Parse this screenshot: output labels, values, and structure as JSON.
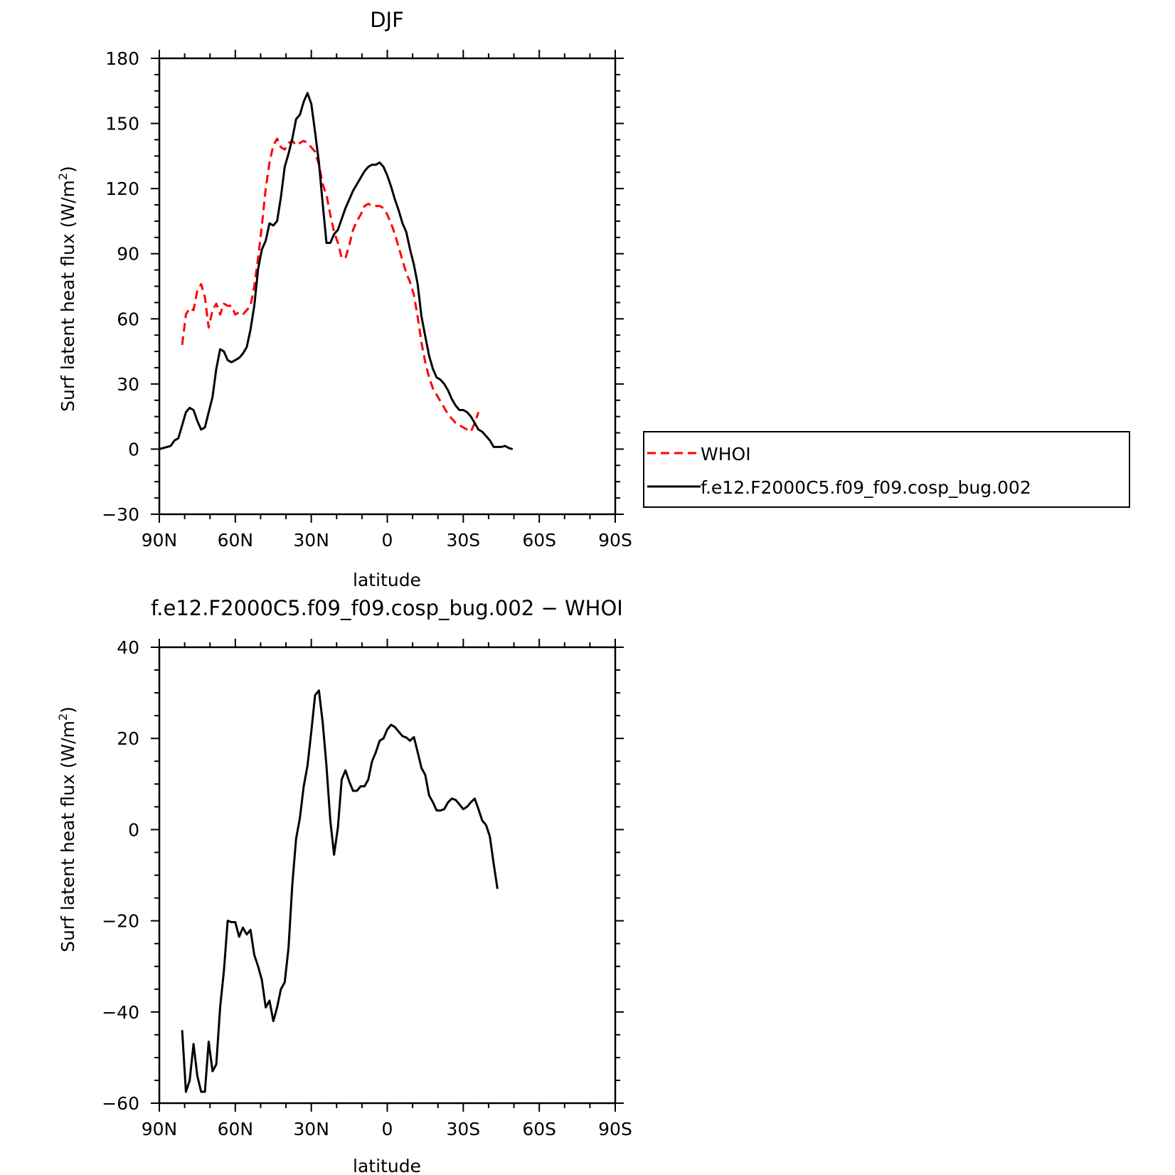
{
  "chart_data": [
    {
      "type": "line",
      "title": "DJF",
      "xlabel": "latitude",
      "ylabel": "Surf latent heat flux (W/m",
      "ylabel_sup": "2",
      "ylabel_tail": ")",
      "xlim": [
        90,
        -90
      ],
      "ylim": [
        -30,
        180
      ],
      "x_ticks": [
        90,
        60,
        30,
        0,
        -30,
        -60,
        -90
      ],
      "x_tick_labels": [
        "90N",
        "60N",
        "30N",
        "0",
        "30S",
        "60S",
        "90S"
      ],
      "y_ticks": [
        -30,
        0,
        30,
        60,
        90,
        120,
        150,
        180
      ],
      "y_tick_labels": [
        "−30",
        "0",
        "30",
        "60",
        "90",
        "120",
        "150",
        "180"
      ],
      "legend": {
        "placement": "right",
        "entries": [
          "WHOI",
          "f.e12.F2000C5.f09_f09.cosp_bug.002"
        ]
      },
      "series": [
        {
          "name": "WHOI",
          "color": "#ff0000",
          "dash": "dashed",
          "points": [
            [
              81,
              48
            ],
            [
              79.5,
              62
            ],
            [
              78,
              65
            ],
            [
              76.5,
              64
            ],
            [
              75,
              73
            ],
            [
              73.5,
              76
            ],
            [
              72,
              70
            ],
            [
              70.5,
              56
            ],
            [
              69,
              64
            ],
            [
              67.5,
              67
            ],
            [
              66,
              62
            ],
            [
              64.5,
              67
            ],
            [
              63,
              66
            ],
            [
              61.5,
              66
            ],
            [
              60,
              62
            ],
            [
              58.5,
              63
            ],
            [
              57,
              62
            ],
            [
              55.5,
              64
            ],
            [
              54,
              66
            ],
            [
              52.5,
              75
            ],
            [
              51,
              88
            ],
            [
              49.5,
              103
            ],
            [
              48,
              120
            ],
            [
              46.5,
              132
            ],
            [
              45,
              140
            ],
            [
              43.5,
              143
            ],
            [
              42,
              139
            ],
            [
              40.5,
              138
            ],
            [
              39,
              141
            ],
            [
              37.5,
              142
            ],
            [
              36,
              140
            ],
            [
              34.5,
              141
            ],
            [
              33,
              142
            ],
            [
              31.5,
              141
            ],
            [
              30,
              139
            ],
            [
              28.5,
              137
            ],
            [
              27,
              131
            ],
            [
              25.5,
              122
            ],
            [
              24,
              117
            ],
            [
              22.5,
              108
            ],
            [
              21,
              100
            ],
            [
              19.5,
              95
            ],
            [
              18,
              88
            ],
            [
              16.5,
              88
            ],
            [
              15,
              94
            ],
            [
              13.5,
              101
            ],
            [
              12,
              105
            ],
            [
              10.5,
              108
            ],
            [
              9,
              112
            ],
            [
              7.5,
              113
            ],
            [
              6,
              112
            ],
            [
              4.5,
              112
            ],
            [
              3,
              112
            ],
            [
              1.5,
              111
            ],
            [
              0,
              108
            ],
            [
              -1.5,
              104
            ],
            [
              -3,
              99
            ],
            [
              -4.5,
              93
            ],
            [
              -6,
              87
            ],
            [
              -7.5,
              81
            ],
            [
              -9,
              77
            ],
            [
              -10.5,
              71
            ],
            [
              -12,
              61
            ],
            [
              -13.5,
              49
            ],
            [
              -15,
              40
            ],
            [
              -16.5,
              33
            ],
            [
              -18,
              28
            ],
            [
              -19.5,
              25
            ],
            [
              -21,
              22
            ],
            [
              -22.5,
              19
            ],
            [
              -24,
              16
            ],
            [
              -25.5,
              14
            ],
            [
              -27,
              12
            ],
            [
              -28.5,
              11
            ],
            [
              -30,
              10
            ],
            [
              -31.5,
              9
            ],
            [
              -33,
              8
            ],
            [
              -34.5,
              12
            ],
            [
              -36,
              17
            ]
          ]
        },
        {
          "name": "f.e12.F2000C5.f09_f09.cosp_bug.002",
          "color": "#000000",
          "dash": "solid",
          "points": [
            [
              90,
              0
            ],
            [
              88.5,
              0.5
            ],
            [
              87,
              1
            ],
            [
              85.5,
              1.5
            ],
            [
              84,
              4
            ],
            [
              82.5,
              5
            ],
            [
              81,
              11
            ],
            [
              79.5,
              17
            ],
            [
              78,
              19
            ],
            [
              76.5,
              18
            ],
            [
              75,
              13
            ],
            [
              73.5,
              9
            ],
            [
              72,
              10
            ],
            [
              70.5,
              17
            ],
            [
              69,
              24
            ],
            [
              67.5,
              37
            ],
            [
              66,
              46
            ],
            [
              64.5,
              45
            ],
            [
              63,
              41
            ],
            [
              61.5,
              40
            ],
            [
              60,
              41
            ],
            [
              58.5,
              42
            ],
            [
              57,
              44
            ],
            [
              55.5,
              47
            ],
            [
              54,
              55
            ],
            [
              52.5,
              66
            ],
            [
              51,
              83
            ],
            [
              49.5,
              92
            ],
            [
              48,
              96
            ],
            [
              46.5,
              104
            ],
            [
              45,
              103
            ],
            [
              43.5,
              105
            ],
            [
              42,
              116
            ],
            [
              40.5,
              130
            ],
            [
              39,
              136
            ],
            [
              37.5,
              143
            ],
            [
              36,
              152
            ],
            [
              34.5,
              154
            ],
            [
              33,
              160
            ],
            [
              31.5,
              164
            ],
            [
              30,
              159
            ],
            [
              28.5,
              146
            ],
            [
              27,
              132
            ],
            [
              25.5,
              113
            ],
            [
              24,
              95
            ],
            [
              22.5,
              95
            ],
            [
              21,
              99
            ],
            [
              19.5,
              101
            ],
            [
              18,
              106
            ],
            [
              16.5,
              111
            ],
            [
              15,
              115
            ],
            [
              13.5,
              119
            ],
            [
              12,
              122
            ],
            [
              10.5,
              125
            ],
            [
              9,
              128
            ],
            [
              7.5,
              130
            ],
            [
              6,
              131
            ],
            [
              4.5,
              131
            ],
            [
              3,
              132
            ],
            [
              1.5,
              130
            ],
            [
              0,
              126
            ],
            [
              -1.5,
              121
            ],
            [
              -3,
              115
            ],
            [
              -4.5,
              110
            ],
            [
              -6,
              104
            ],
            [
              -7.5,
              100
            ],
            [
              -9,
              92
            ],
            [
              -10.5,
              85
            ],
            [
              -12,
              76
            ],
            [
              -13.5,
              61
            ],
            [
              -15,
              52
            ],
            [
              -16.5,
              43
            ],
            [
              -18,
              37
            ],
            [
              -19.5,
              33
            ],
            [
              -21,
              32
            ],
            [
              -22.5,
              30
            ],
            [
              -24,
              27
            ],
            [
              -25.5,
              23
            ],
            [
              -27,
              20
            ],
            [
              -28.5,
              18
            ],
            [
              -30,
              18
            ],
            [
              -31.5,
              17
            ],
            [
              -33,
              15
            ],
            [
              -34.5,
              12
            ],
            [
              -36,
              9
            ],
            [
              -37.5,
              8
            ],
            [
              -39,
              6
            ],
            [
              -40.5,
              4
            ],
            [
              -42,
              1
            ],
            [
              -43.5,
              1
            ],
            [
              -45,
              1
            ],
            [
              -46.5,
              1.5
            ],
            [
              -48,
              0.5
            ],
            [
              -49.5,
              0
            ]
          ]
        }
      ]
    },
    {
      "type": "line",
      "title": "f.e12.F2000C5.f09_f09.cosp_bug.002 − WHOI",
      "xlabel": "latitude",
      "ylabel": "Surf latent heat flux (W/m",
      "ylabel_sup": "2",
      "ylabel_tail": ")",
      "xlim": [
        90,
        -90
      ],
      "ylim": [
        -60,
        40
      ],
      "x_ticks": [
        90,
        60,
        30,
        0,
        -30,
        -60,
        -90
      ],
      "x_tick_labels": [
        "90N",
        "60N",
        "30N",
        "0",
        "30S",
        "60S",
        "90S"
      ],
      "y_ticks": [
        -60,
        -40,
        -20,
        0,
        20,
        40
      ],
      "y_tick_labels": [
        "−60",
        "−40",
        "−20",
        "0",
        "20",
        "40"
      ],
      "series": [
        {
          "color": "#000000",
          "dash": "solid",
          "points": [
            [
              81,
              -44
            ],
            [
              79.5,
              -57.5
            ],
            [
              78,
              -55
            ],
            [
              76.5,
              -47
            ],
            [
              75,
              -54
            ],
            [
              73.5,
              -57.5
            ],
            [
              72,
              -57.5
            ],
            [
              70.5,
              -46.5
            ],
            [
              69,
              -53
            ],
            [
              67.5,
              -51.5
            ],
            [
              66,
              -39
            ],
            [
              64.5,
              -31
            ],
            [
              63,
              -20
            ],
            [
              61.5,
              -20.3
            ],
            [
              60,
              -20.3
            ],
            [
              58.5,
              -23.5
            ],
            [
              57,
              -21.5
            ],
            [
              55.5,
              -23
            ],
            [
              54,
              -22
            ],
            [
              52.5,
              -27.5
            ],
            [
              51,
              -30
            ],
            [
              49.5,
              -33
            ],
            [
              48,
              -39
            ],
            [
              46.5,
              -37.5
            ],
            [
              45,
              -42
            ],
            [
              43.5,
              -39
            ],
            [
              42,
              -35
            ],
            [
              40.5,
              -33.5
            ],
            [
              39,
              -26
            ],
            [
              37.5,
              -12
            ],
            [
              36,
              -2
            ],
            [
              34.5,
              2.5
            ],
            [
              33,
              9.5
            ],
            [
              31.5,
              14
            ],
            [
              30,
              21.5
            ],
            [
              28.5,
              29.5
            ],
            [
              27,
              30.5
            ],
            [
              25.5,
              23.5
            ],
            [
              24,
              14
            ],
            [
              22.5,
              2
            ],
            [
              21,
              -5.5
            ],
            [
              19.5,
              0.5
            ],
            [
              18,
              11
            ],
            [
              16.5,
              13
            ],
            [
              15,
              10.5
            ],
            [
              13.5,
              8.5
            ],
            [
              12,
              8.5
            ],
            [
              10.5,
              9.5
            ],
            [
              9,
              9.5
            ],
            [
              7.5,
              11
            ],
            [
              6,
              15
            ],
            [
              4.5,
              17
            ],
            [
              3,
              19.5
            ],
            [
              1.5,
              20
            ],
            [
              0,
              22
            ],
            [
              -1.5,
              23
            ],
            [
              -3,
              22.5
            ],
            [
              -4.5,
              21.5
            ],
            [
              -6,
              20.5
            ],
            [
              -7.5,
              20.2
            ],
            [
              -9,
              19.5
            ],
            [
              -10.5,
              20.3
            ],
            [
              -12,
              17
            ],
            [
              -13.5,
              13.5
            ],
            [
              -15,
              12
            ],
            [
              -16.5,
              7.5
            ],
            [
              -18,
              6
            ],
            [
              -19.5,
              4.2
            ],
            [
              -21,
              4.2
            ],
            [
              -22.5,
              4.5
            ],
            [
              -24,
              6
            ],
            [
              -25.5,
              6.8
            ],
            [
              -27,
              6.5
            ],
            [
              -28.5,
              5.5
            ],
            [
              -30,
              4.5
            ],
            [
              -31.5,
              5
            ],
            [
              -33,
              6
            ],
            [
              -34.5,
              6.8
            ],
            [
              -36,
              4.5
            ],
            [
              -37.5,
              2
            ],
            [
              -39,
              1
            ],
            [
              -40.5,
              -1.5
            ],
            [
              -42,
              -7.5
            ],
            [
              -43.5,
              -13
            ]
          ]
        }
      ]
    }
  ]
}
